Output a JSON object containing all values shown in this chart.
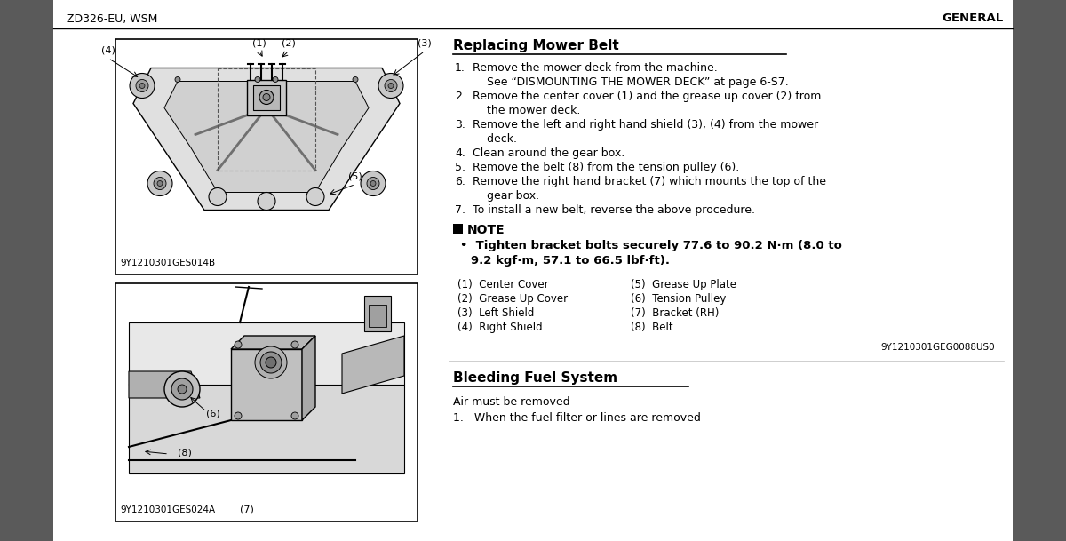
{
  "bg_color": "#ffffff",
  "left_sidebar_color": "#5a5a5a",
  "page_bg": "#f0f0f0",
  "header_line_color": "#000000",
  "header_left": "ZD326-EU, WSM",
  "header_right": "GENERAL",
  "header_fontsize": 10,
  "title_replacing": "Replacing Mower Belt",
  "note_label": "NOTE",
  "parts_left": [
    "(1)  Center Cover",
    "(2)  Grease Up Cover",
    "(3)  Left Shield",
    "(4)  Right Shield"
  ],
  "parts_right": [
    "(5)  Grease Up Plate",
    "(6)  Tension Pulley",
    "(7)  Bracket (RH)",
    "(8)  Belt"
  ],
  "diagram_ref": "9Y1210301GEG0088US0",
  "fig1_label": "9Y1210301GES014B",
  "fig2_label": "9Y1210301GES024A",
  "fig2_label2": "(7)",
  "title_bleeding": "Bleeding Fuel System",
  "bleeding_text": "Air must be removed",
  "bleeding_step1": "1.   When the fuel filter or lines are removed"
}
